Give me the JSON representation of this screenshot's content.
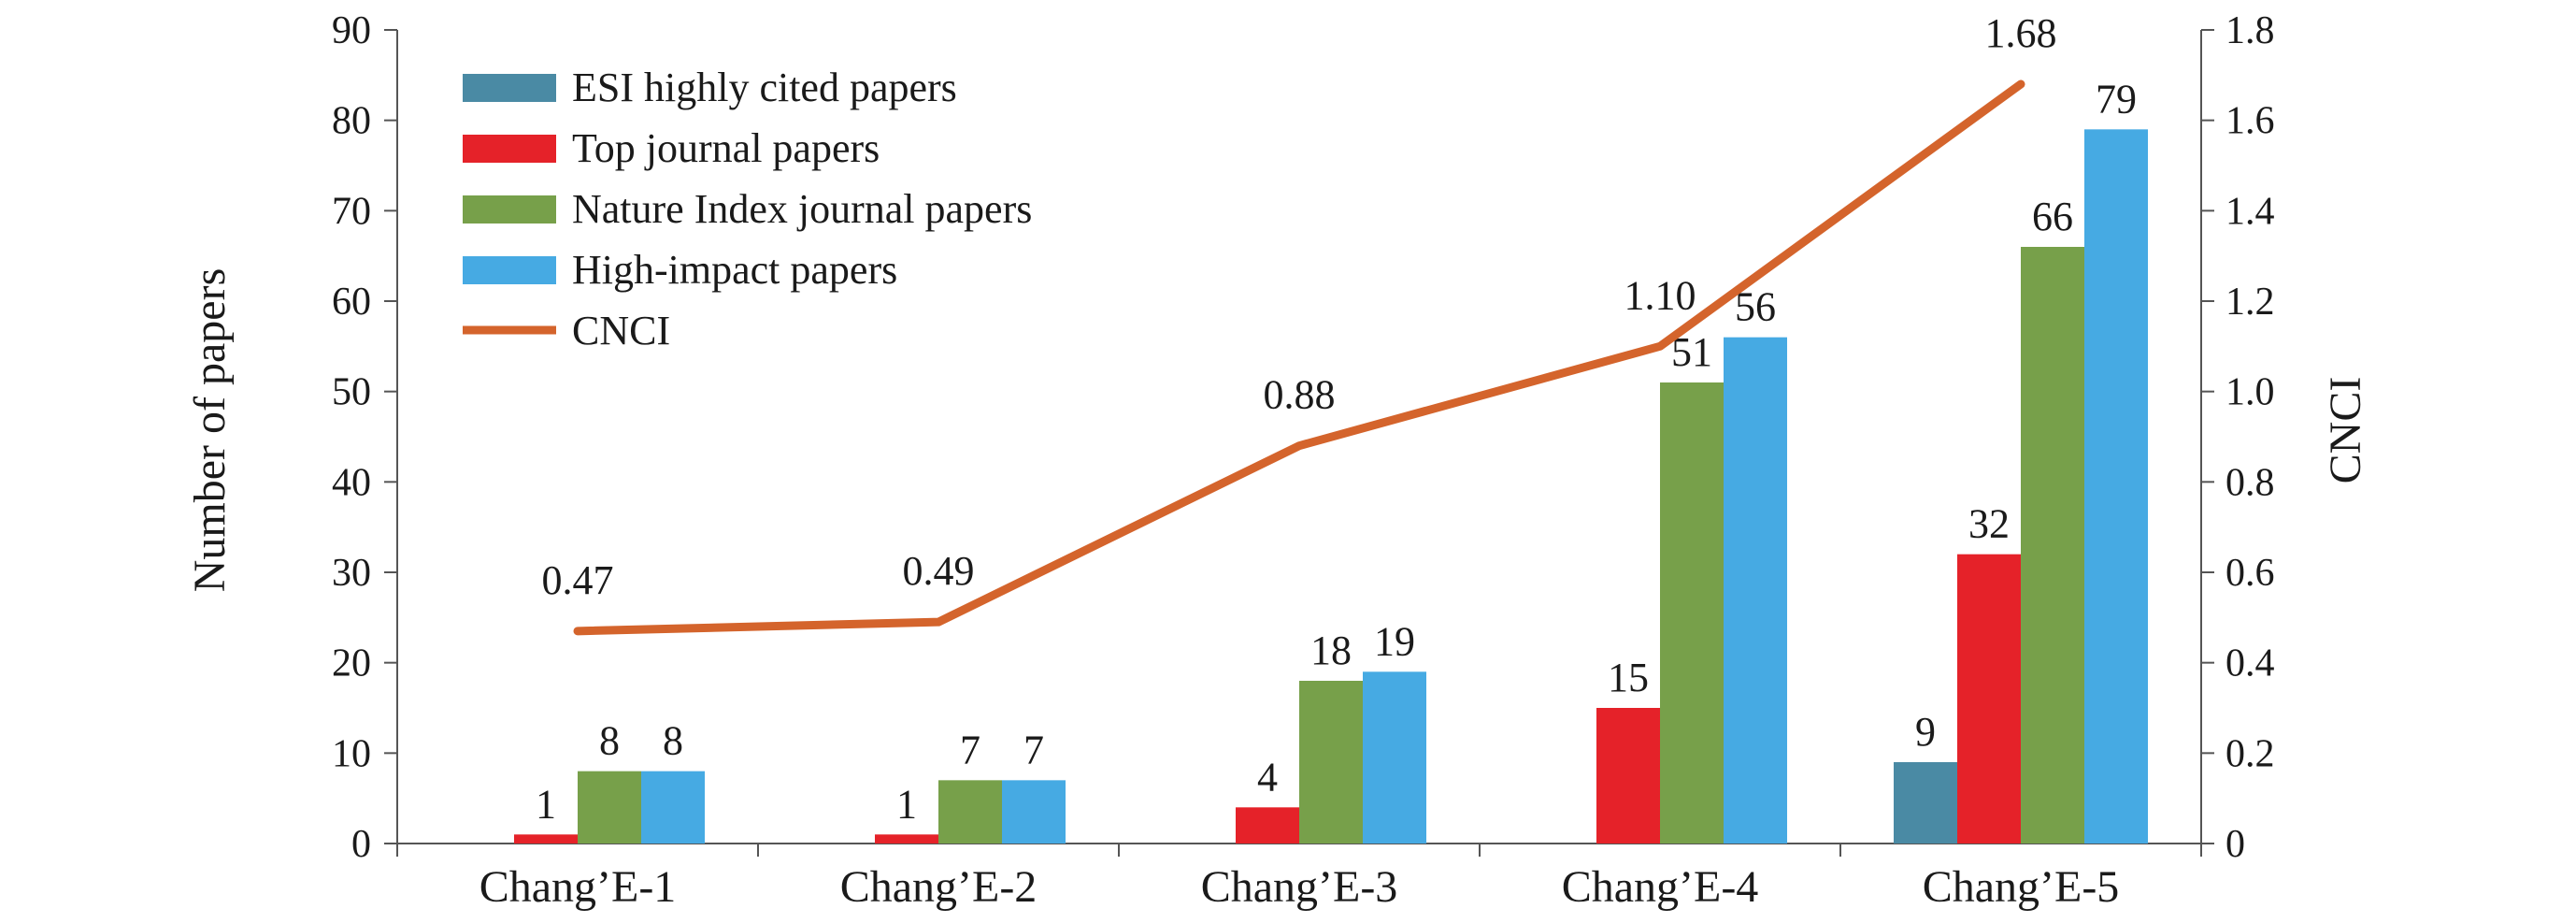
{
  "chart_data": {
    "type": "bar",
    "categories": [
      "Chang’E-1",
      "Chang’E-2",
      "Chang’E-3",
      "Chang’E-4",
      "Chang’E-5"
    ],
    "series": [
      {
        "name": "ESI highly cited papers",
        "color": "#4a8aa4",
        "values": [
          0,
          0,
          0,
          0,
          9
        ],
        "labels": [
          "",
          "",
          "",
          "",
          "9"
        ]
      },
      {
        "name": "Top journal papers",
        "color": "#e52229",
        "values": [
          1,
          1,
          4,
          15,
          32
        ],
        "labels": [
          "1",
          "1",
          "4",
          "15",
          "32"
        ]
      },
      {
        "name": "Nature Index journal papers",
        "color": "#77a04a",
        "values": [
          8,
          7,
          18,
          51,
          66
        ],
        "labels": [
          "8",
          "7",
          "18",
          "51",
          "66"
        ]
      },
      {
        "name": "High-impact papers",
        "color": "#46aae3",
        "values": [
          8,
          7,
          19,
          56,
          79
        ],
        "labels": [
          "8",
          "7",
          "19",
          "56",
          "79"
        ]
      }
    ],
    "line_series": {
      "name": "CNCI",
      "color": "#d4642c",
      "axis": "right",
      "values": [
        0.47,
        0.49,
        0.88,
        1.1,
        1.68
      ],
      "labels": [
        "0.47",
        "0.49",
        "0.88",
        "1.10",
        "1.68"
      ]
    },
    "ylabel": "Number of papers",
    "y2label": "CNCI",
    "ylim": [
      0,
      90
    ],
    "y2lim": [
      0,
      1.8
    ],
    "yticks": [
      "0",
      "10",
      "20",
      "30",
      "40",
      "50",
      "60",
      "70",
      "80",
      "90"
    ],
    "y2ticks": [
      "0",
      "0.2",
      "0.4",
      "0.6",
      "0.8",
      "1.0",
      "1.2",
      "1.4",
      "1.6",
      "1.8"
    ],
    "grid": false,
    "legend_position": "top-left"
  }
}
